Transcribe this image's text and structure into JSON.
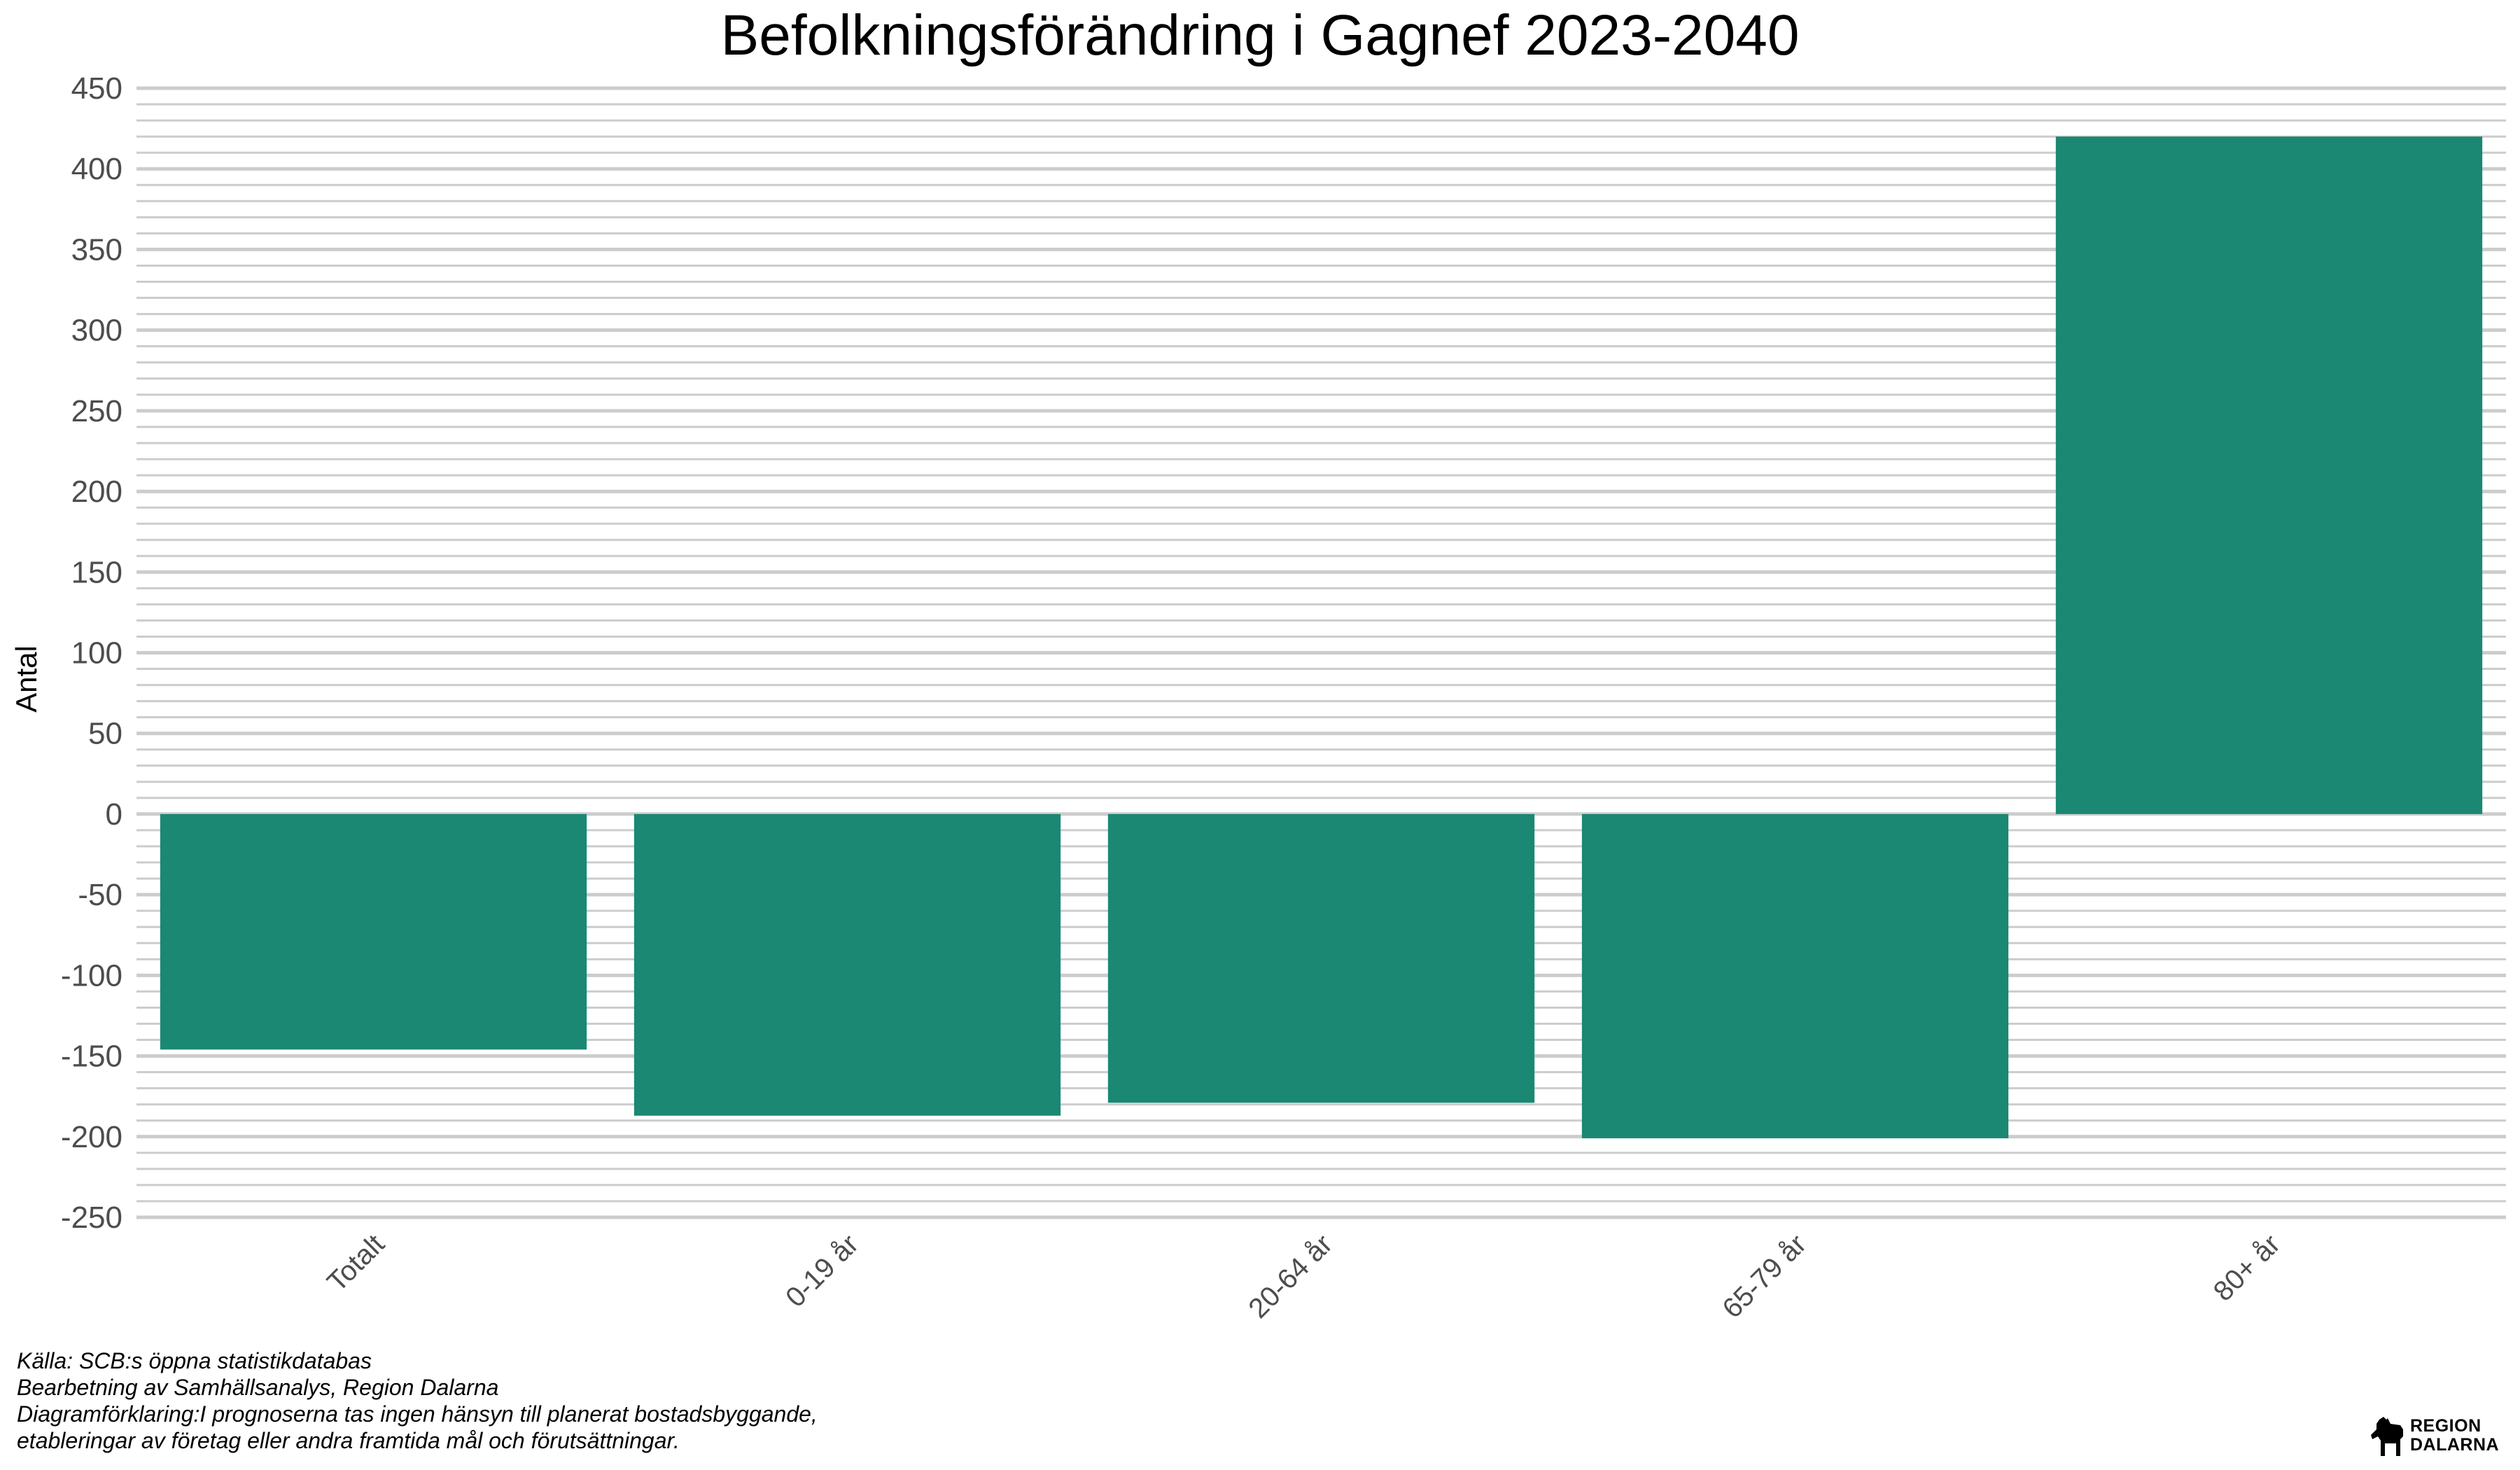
{
  "chart_data": {
    "type": "bar",
    "title": "Befolkningsförändring i Gagnef 2023-2040",
    "ylabel": "Antal",
    "xlabel": "",
    "categories": [
      "Totalt",
      "0-19 år",
      "20-64 år",
      "65-79 år",
      "80+ år"
    ],
    "values": [
      -146,
      -187,
      -179,
      -201,
      420
    ],
    "ylim": [
      -250,
      450
    ],
    "yticks": [
      -250,
      -200,
      -150,
      -100,
      -50,
      0,
      50,
      100,
      150,
      200,
      250,
      300,
      350,
      400,
      450
    ],
    "grid": true,
    "legend": "none",
    "bar_color": "#1a8873",
    "grid_color": "#cccccc"
  },
  "caption": {
    "source": "Källa: SCB:s öppna statistikdatabas",
    "processing": "Bearbetning av Samhällsanalys, Region Dalarna",
    "explanation_line1": "Diagramförklaring:I prognoserna tas ingen hänsyn till planerat bostadsbyggande,",
    "explanation_line2": "etableringar av företag eller andra framtida mål och förutsättningar."
  },
  "logo": {
    "line1": "REGION",
    "line2": "DALARNA",
    "icon": "dala-horse-icon"
  }
}
